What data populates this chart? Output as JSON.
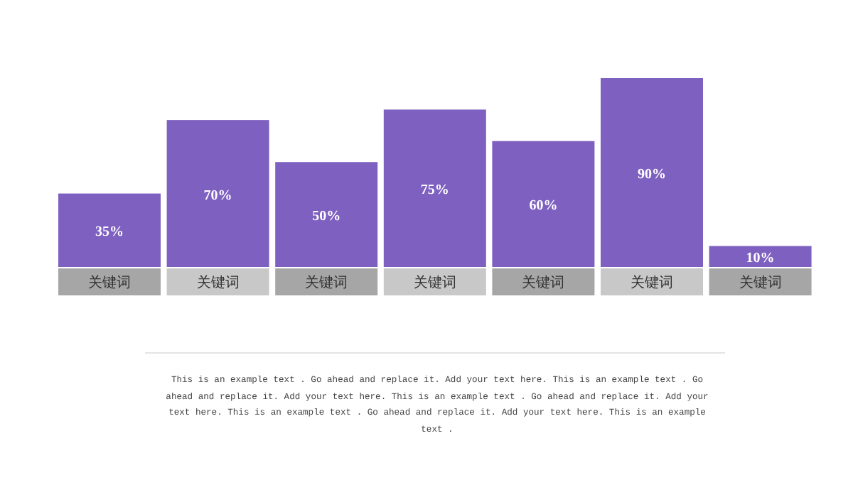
{
  "chart_data": {
    "type": "bar",
    "categories": [
      "关键词",
      "关键词",
      "关键词",
      "关键词",
      "关键词",
      "关键词",
      "关键词"
    ],
    "values": [
      35,
      70,
      50,
      75,
      60,
      90,
      10
    ],
    "value_labels": [
      "35%",
      "70%",
      "50%",
      "75%",
      "60%",
      "90%",
      "10%"
    ],
    "color": "#7e60c0",
    "annotations": [
      "This is an example text . Go ahead and replace it. Add your text here. This is an example text . Go ahead and replace it. Add your text here. This is an example text . Go ahead and replace it. Add your text here. This is an example text . Go ahead and replace it. Add your text here. This is an example text ."
    ]
  }
}
